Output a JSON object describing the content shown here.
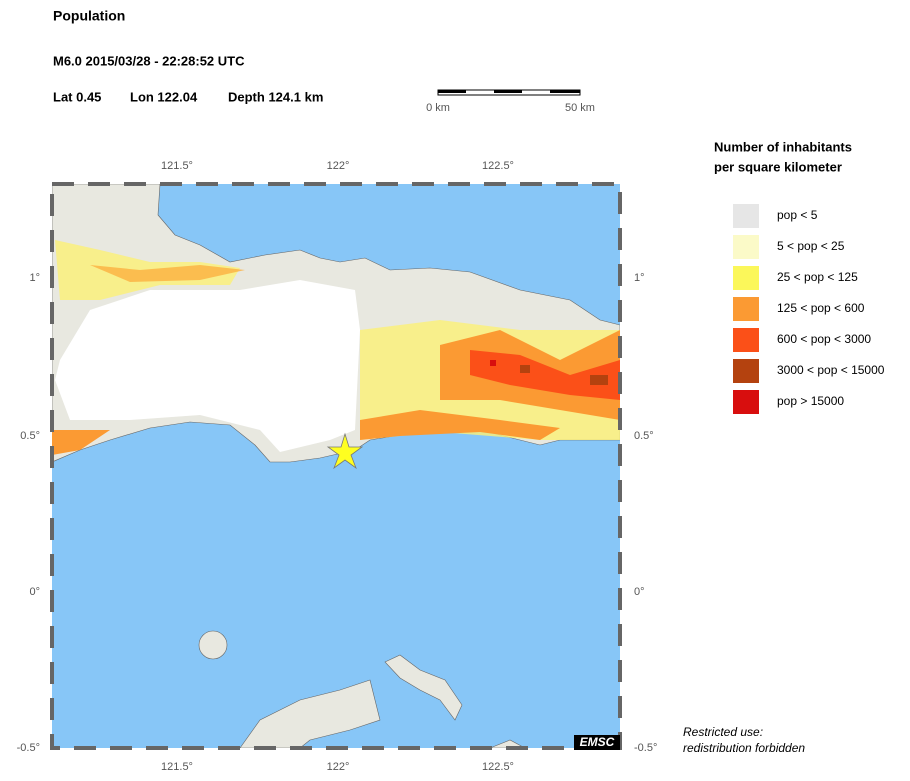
{
  "header": {
    "title": "Population",
    "event": "M6.0  2015/03/28 - 22:28:52 UTC",
    "lat": "Lat  0.45",
    "lon": "Lon 122.04",
    "depth": "Depth 124.1 km"
  },
  "scale_bar": {
    "start": "0 km",
    "end": "50 km"
  },
  "map": {
    "lon_labels": [
      "121.5°",
      "122°",
      "122.5°"
    ],
    "lat_labels": [
      "1°",
      "0.5°",
      "0°",
      "-0.5°"
    ],
    "logo": "EMSC"
  },
  "legend": {
    "title": [
      "Number of inhabitants",
      "per square kilometer"
    ],
    "items": [
      {
        "label": "pop < 5",
        "color": "#e6e6e6"
      },
      {
        "label": "5 < pop < 25",
        "color": "#fbfac8"
      },
      {
        "label": "25 < pop < 125",
        "color": "#fbf75a"
      },
      {
        "label": "125 < pop < 600",
        "color": "#fb9a33"
      },
      {
        "label": "600 < pop < 3000",
        "color": "#fb5018"
      },
      {
        "label": "3000 < pop < 15000",
        "color": "#b4420f"
      },
      {
        "label": "pop > 15000",
        "color": "#d80e0e"
      }
    ]
  },
  "footer": [
    "Restricted use:",
    "redistribution forbidden"
  ]
}
